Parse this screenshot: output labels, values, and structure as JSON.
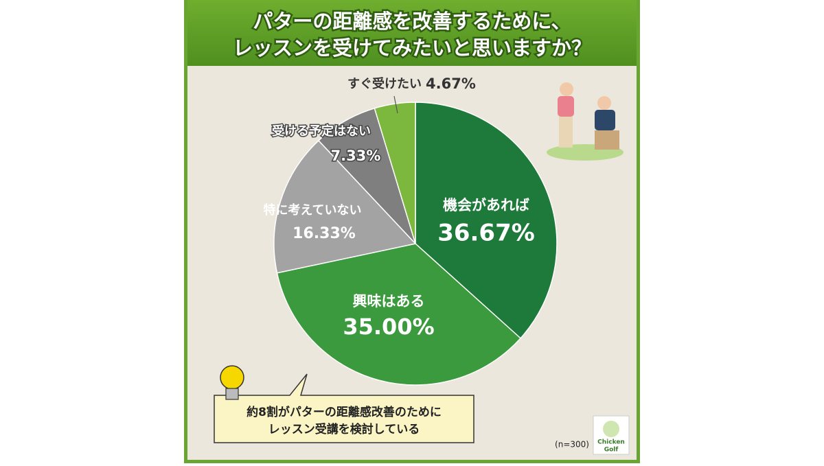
{
  "chart_data": {
    "type": "pie",
    "title": [
      "パターの距離感を改善するために、",
      "レッスンを受けてみたいと思いますか？"
    ],
    "categories": [
      "機会があれば",
      "興味はある",
      "特に考えていない",
      "受ける予定はない",
      "すぐ受けたい"
    ],
    "values": [
      36.67,
      35.0,
      16.33,
      7.33,
      4.67
    ],
    "value_labels": [
      "36.67%",
      "35.00%",
      "16.33%",
      "7.33%",
      "4.67%"
    ],
    "colors": [
      "#1d7a3b",
      "#3b9a3d",
      "#a3a3a3",
      "#7f7f7f",
      "#7cb83e"
    ],
    "note": "(n=300)"
  },
  "callout": {
    "lines": [
      "約8割がパターの距離感改善のために",
      "レッスン受講を検討している"
    ]
  },
  "logo": {
    "lines": [
      "Chicken",
      "Golf"
    ]
  }
}
